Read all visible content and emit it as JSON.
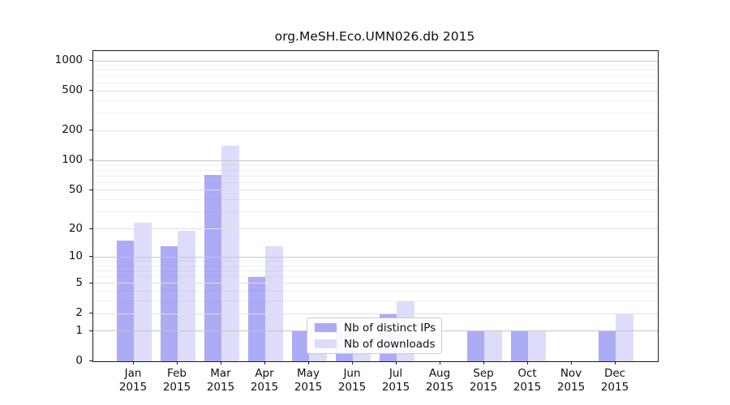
{
  "title": "org.MeSH.Eco.UMN026.db 2015",
  "chart_data": {
    "type": "bar",
    "title": "org.MeSH.Eco.UMN026.db 2015",
    "categories": [
      "Jan 2015",
      "Feb 2015",
      "Mar 2015",
      "Apr 2015",
      "May 2015",
      "Jun 2015",
      "Jul 2015",
      "Aug 2015",
      "Sep 2015",
      "Oct 2015",
      "Nov 2015",
      "Dec 2015"
    ],
    "x_tick_months": [
      "Jan",
      "Feb",
      "Mar",
      "Apr",
      "May",
      "Jun",
      "Jul",
      "Aug",
      "Sep",
      "Oct",
      "Nov",
      "Dec"
    ],
    "x_tick_year": "2015",
    "series": [
      {
        "name": "Nb of distinct IPs",
        "color": "rgba(102,102,238,0.55)",
        "legend_color": "#aaaaf2",
        "values": [
          15,
          13,
          72,
          6,
          1,
          1,
          2,
          0,
          1,
          1,
          0,
          1
        ]
      },
      {
        "name": "Nb of downloads",
        "color": "rgba(102,102,238,0.22)",
        "legend_color": "#dcdcf9",
        "values": [
          23,
          19,
          140,
          13,
          1,
          1,
          3,
          0,
          1,
          1,
          0,
          2
        ]
      }
    ],
    "xlabel": "",
    "ylabel": "",
    "y_scale": "log10(1+x)",
    "ylim": [
      0,
      1250
    ],
    "y_ticks": [
      0,
      1,
      2,
      5,
      10,
      20,
      50,
      100,
      200,
      500,
      1000
    ],
    "y_minor_ticks": [
      3,
      4,
      6,
      7,
      8,
      9,
      30,
      40,
      60,
      70,
      80,
      90,
      300,
      400,
      600,
      700,
      800,
      900
    ],
    "grid": "on",
    "legend_position": "lower center-left inside plot",
    "colors": {
      "grid_decade": "#c6c6c6",
      "grid_major": "#e0e0e0",
      "grid_minor": "#f0f0f0",
      "spine": "#1a1a1a",
      "text": "#111111"
    }
  }
}
